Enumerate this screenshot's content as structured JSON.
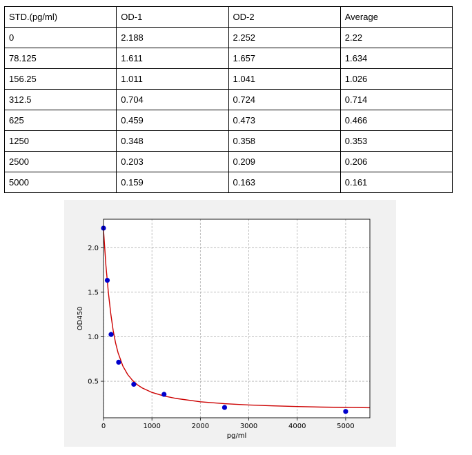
{
  "table": {
    "headers": [
      "STD.(pg/ml)",
      "OD-1",
      "OD-2",
      "Average"
    ],
    "rows": [
      [
        "0",
        "2.188",
        "2.252",
        "2.22"
      ],
      [
        "78.125",
        "1.611",
        "1.657",
        "1.634"
      ],
      [
        "156.25",
        "1.011",
        "1.041",
        "1.026"
      ],
      [
        "312.5",
        "0.704",
        "0.724",
        "0.714"
      ],
      [
        "625",
        "0.459",
        "0.473",
        "0.466"
      ],
      [
        "1250",
        "0.348",
        "0.358",
        "0.353"
      ],
      [
        "2500",
        "0.203",
        "0.209",
        "0.206"
      ],
      [
        "5000",
        "0.159",
        "0.163",
        "0.161"
      ]
    ]
  },
  "chart_data": {
    "type": "scatter",
    "xlabel": "pg/ml",
    "ylabel": "OD450",
    "xlim": [
      0,
      5500
    ],
    "ylim": [
      0.09,
      2.32
    ],
    "xticks": [
      0,
      1000,
      2000,
      3000,
      4000,
      5000
    ],
    "yticks": [
      0.5,
      1.0,
      1.5,
      2.0
    ],
    "ytick_labels": [
      "0.5",
      "1.0",
      "1.5",
      "2.0"
    ],
    "grid": true,
    "points": {
      "color": "#0000cc",
      "x": [
        0,
        78.125,
        156.25,
        312.5,
        625,
        1250,
        2500,
        5000
      ],
      "y": [
        2.22,
        1.634,
        1.026,
        0.714,
        0.466,
        0.353,
        0.206,
        0.161
      ]
    },
    "fit_curve": {
      "color": "#cc0000",
      "x": [
        0,
        50,
        100,
        150,
        200,
        250,
        300,
        400,
        500,
        600,
        700,
        800,
        1000,
        1250,
        1500,
        2000,
        2500,
        3000,
        3500,
        4000,
        4500,
        5000,
        5500
      ],
      "y": [
        2.2,
        1.8,
        1.5,
        1.26,
        1.07,
        0.93,
        0.82,
        0.67,
        0.575,
        0.51,
        0.46,
        0.425,
        0.375,
        0.335,
        0.307,
        0.27,
        0.248,
        0.234,
        0.224,
        0.216,
        0.21,
        0.206,
        0.203
      ]
    }
  }
}
